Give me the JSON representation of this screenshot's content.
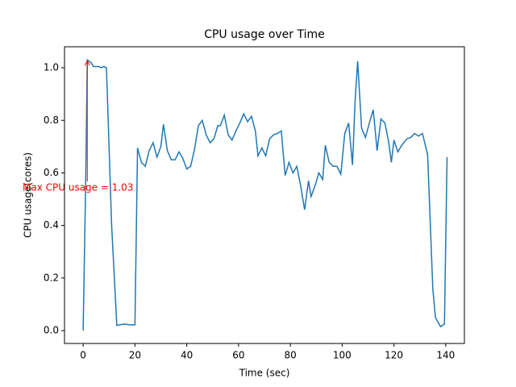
{
  "chart_data": {
    "type": "line",
    "title": "CPU usage over Time",
    "xlabel": "Time (sec)",
    "ylabel": "CPU usage(cores)",
    "annotation": "Max CPU usage = 1.03",
    "x": [
      0,
      1,
      1.6,
      3,
      4,
      6,
      7,
      8,
      9,
      11,
      13,
      16,
      18,
      20,
      21,
      22.5,
      24,
      25.5,
      27,
      28.5,
      30,
      31,
      32.5,
      34,
      35.5,
      37,
      38.5,
      40,
      41.5,
      43,
      44.5,
      46,
      47.5,
      49,
      50.5,
      52,
      53,
      54.5,
      56,
      57.5,
      59,
      60.5,
      62,
      63.5,
      65,
      66.5,
      67.5,
      69,
      70.5,
      72,
      73.5,
      75,
      76.5,
      78,
      79.5,
      81,
      82.5,
      84,
      85.5,
      87,
      88,
      89.5,
      91,
      92.5,
      93.5,
      95,
      96.5,
      98,
      99.5,
      101,
      102.5,
      104,
      105,
      106,
      107.5,
      109,
      110.5,
      112,
      113.5,
      115,
      116.5,
      118,
      119,
      120,
      121.5,
      123,
      125,
      126.5,
      128,
      129.5,
      131,
      133,
      135,
      136,
      138,
      139.5,
      140.5
    ],
    "series": [
      {
        "name": "CPU usage",
        "color": "#1f77b4",
        "values": [
          0,
          0.58,
          1.03,
          1.02,
          1.005,
          1.005,
          1.0,
          1.005,
          1.0,
          0.4,
          0.02,
          0.025,
          0.022,
          0.022,
          0.695,
          0.64,
          0.625,
          0.685,
          0.715,
          0.66,
          0.7,
          0.785,
          0.685,
          0.65,
          0.65,
          0.68,
          0.655,
          0.615,
          0.625,
          0.69,
          0.78,
          0.8,
          0.745,
          0.715,
          0.73,
          0.78,
          0.78,
          0.82,
          0.745,
          0.725,
          0.76,
          0.79,
          0.825,
          0.795,
          0.815,
          0.76,
          0.665,
          0.695,
          0.665,
          0.73,
          0.745,
          0.75,
          0.76,
          0.59,
          0.64,
          0.6,
          0.625,
          0.55,
          0.46,
          0.57,
          0.51,
          0.55,
          0.6,
          0.575,
          0.705,
          0.64,
          0.625,
          0.625,
          0.595,
          0.75,
          0.79,
          0.63,
          0.875,
          1.025,
          0.77,
          0.735,
          0.79,
          0.84,
          0.685,
          0.805,
          0.79,
          0.715,
          0.64,
          0.725,
          0.68,
          0.705,
          0.73,
          0.735,
          0.75,
          0.74,
          0.75,
          0.67,
          0.16,
          0.05,
          0.015,
          0.025,
          0.66
        ]
      }
    ],
    "annotation_color": "#ff0000",
    "xlim": [
      -7.2,
      147.2
    ],
    "ylim": [
      -0.049,
      1.08
    ],
    "xticks": [
      0,
      20,
      40,
      60,
      80,
      100,
      120,
      140
    ],
    "yticks": [
      {
        "value": 0,
        "label": "0.0"
      },
      0.2,
      0.4,
      0.6,
      0.8,
      {
        "value": 1,
        "label": "1.0"
      }
    ]
  }
}
